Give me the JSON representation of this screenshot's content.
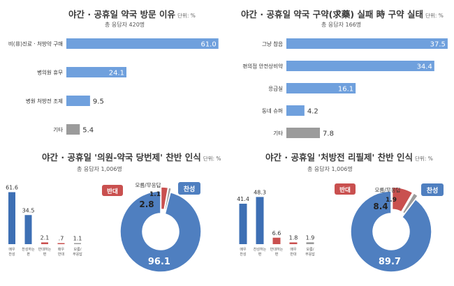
{
  "colors": {
    "blue": "#6fa0dd",
    "blue_dark": "#3d6fb4",
    "red": "#c9504f",
    "gray": "#9b9b9b",
    "donut_blue": "#4f7fc0"
  },
  "chart_data": [
    {
      "type": "bar",
      "title": "야간 · 공휴일 약국 방문 이유",
      "unit": "단위: %",
      "subtitle": "총 응답자 420명",
      "categories": [
        "비(非)진료 · 처방약 구매",
        "병의원 휴무",
        "병원 처방전 조제",
        "기타"
      ],
      "values": [
        61.0,
        24.1,
        9.5,
        5.4
      ],
      "value_labels": [
        "61.0",
        "24.1",
        "9.5",
        "5.4"
      ],
      "bar_colors": [
        "blue",
        "blue",
        "blue",
        "gray"
      ],
      "xlim": [
        0,
        65
      ]
    },
    {
      "type": "bar",
      "title": "야간 · 공휴일 약국 구약(求藥) 실패 時 구약 실태",
      "unit": "단위: %",
      "subtitle": "총 응답자 166명",
      "categories": [
        "그냥 참음",
        "편의점 안전상비약",
        "응급실",
        "동네 슈퍼",
        "기타"
      ],
      "values": [
        37.5,
        34.4,
        16.1,
        4.2,
        7.8
      ],
      "value_labels": [
        "37.5",
        "34.4",
        "16.1",
        "4.2",
        "7.8"
      ],
      "bar_colors": [
        "blue",
        "blue",
        "blue",
        "blue",
        "gray"
      ],
      "xlim": [
        0,
        38
      ]
    },
    {
      "type": "bar",
      "title": "야간 · 공휴일 '의원-약국 당번제' 찬반 인식",
      "unit": "단위: %",
      "subtitle": "총 응답자 1,006명",
      "categories": [
        "매우 찬성",
        "찬성 하는 편",
        "반대 하는 편",
        "매우 반대",
        "모름/ 무응답"
      ],
      "values": [
        61.6,
        34.5,
        2.1,
        0.7,
        1.1
      ],
      "value_labels": [
        "61.6",
        "34.5",
        "2.1",
        ".7",
        "1.1"
      ],
      "bar_colors": [
        "blue_dark",
        "blue_dark",
        "red",
        "red",
        "gray"
      ],
      "ylim": [
        0,
        62
      ]
    },
    {
      "type": "pie",
      "labels": [
        "찬성",
        "반대",
        "모름/무응답"
      ],
      "values": [
        96.1,
        2.8,
        1.1
      ],
      "value_labels": [
        "96.1",
        "2.8",
        "1.1"
      ],
      "colors": [
        "donut_blue",
        "red",
        "gray"
      ]
    },
    {
      "type": "bar",
      "title": "야간 · 공휴일 '처방전 리필제' 찬반 인식",
      "unit": "단위: %",
      "subtitle": "총 응답자 1,006명",
      "categories": [
        "매우 찬성",
        "찬성 하는 편",
        "반대 하는 편",
        "매우 반대",
        "모름/ 무응답"
      ],
      "values": [
        41.4,
        48.3,
        6.6,
        1.8,
        1.9
      ],
      "value_labels": [
        "41.4",
        "48.3",
        "6.6",
        "1.8",
        "1.9"
      ],
      "bar_colors": [
        "blue_dark",
        "blue_dark",
        "red",
        "red",
        "gray"
      ],
      "ylim": [
        0,
        50
      ]
    },
    {
      "type": "pie",
      "labels": [
        "찬성",
        "반대",
        "모름/무응답"
      ],
      "values": [
        89.7,
        8.4,
        1.9
      ],
      "value_labels": [
        "89.7",
        "8.4",
        "1.9"
      ],
      "colors": [
        "donut_blue",
        "red",
        "gray"
      ]
    }
  ]
}
